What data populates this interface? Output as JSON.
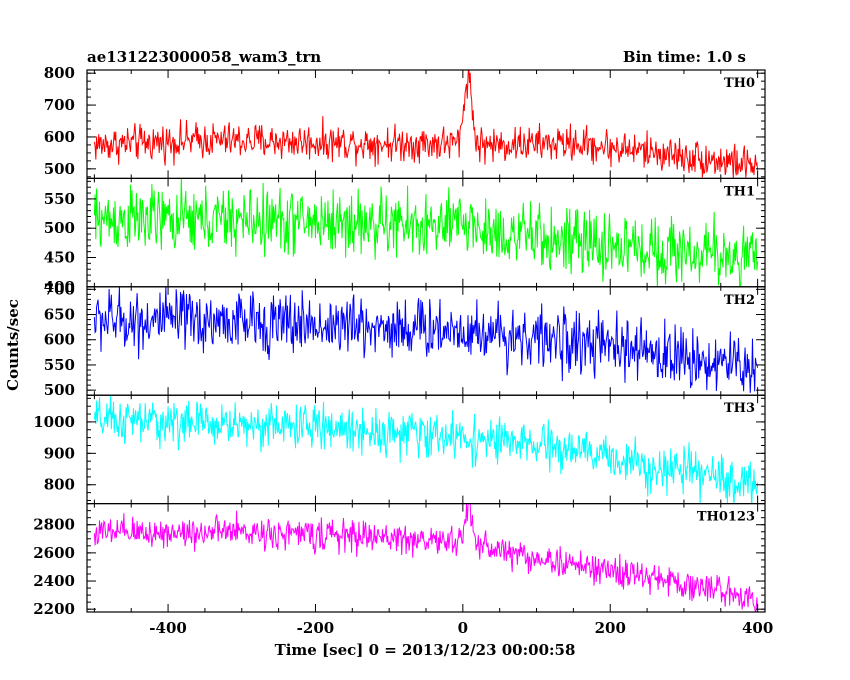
{
  "header": {
    "title": "ae131223000058_wam3_trn",
    "bin_time": "Bin time: 1.0 s"
  },
  "chart_data": {
    "type": "line",
    "xlabel": "Time [sec] 0 = 2013/12/23 00:00:58",
    "ylabel": "Counts/sec",
    "xlim": [
      -510,
      410
    ],
    "x_ticks": [
      -400,
      -200,
      0,
      200,
      400
    ],
    "x_step": 1,
    "series": [
      {
        "name": "TH0",
        "color": "#ff0000",
        "ylim": [
          470,
          810
        ],
        "y_ticks": [
          500,
          600,
          700,
          800
        ],
        "trend": [
          [
            -500,
            575
          ],
          [
            -350,
            590
          ],
          [
            -100,
            580
          ],
          [
            0,
            580
          ],
          [
            20,
            575
          ],
          [
            150,
            580
          ],
          [
            250,
            555
          ],
          [
            400,
            510
          ]
        ],
        "noise": 28,
        "peaks": [
          {
            "t": 7,
            "amp": 220,
            "w": 5
          }
        ]
      },
      {
        "name": "TH1",
        "color": "#00ff00",
        "ylim": [
          400,
          585
        ],
        "y_ticks": [
          400,
          450,
          500,
          550
        ],
        "trend": [
          [
            -500,
            515
          ],
          [
            -200,
            512
          ],
          [
            0,
            500
          ],
          [
            150,
            475
          ],
          [
            400,
            450
          ]
        ],
        "noise": 28,
        "peaks": [
          {
            "t": 5,
            "amp": 15,
            "w": 8
          }
        ]
      },
      {
        "name": "TH2",
        "color": "#0000ff",
        "ylim": [
          490,
          705
        ],
        "y_ticks": [
          500,
          550,
          600,
          650,
          700
        ],
        "trend": [
          [
            -500,
            640
          ],
          [
            -300,
            635
          ],
          [
            -100,
            625
          ],
          [
            0,
            620
          ],
          [
            150,
            595
          ],
          [
            400,
            545
          ]
        ],
        "noise": 30,
        "peaks": []
      },
      {
        "name": "TH3",
        "color": "#00ffff",
        "ylim": [
          740,
          1085
        ],
        "y_ticks": [
          800,
          900,
          1000
        ],
        "trend": [
          [
            -500,
            1005
          ],
          [
            -200,
            985
          ],
          [
            0,
            950
          ],
          [
            150,
            910
          ],
          [
            300,
            840
          ],
          [
            400,
            800
          ]
        ],
        "noise": 35,
        "peaks": []
      },
      {
        "name": "TH0123",
        "color": "#ff00ff",
        "ylim": [
          2180,
          2950
        ],
        "y_ticks": [
          2200,
          2400,
          2600,
          2800
        ],
        "trend": [
          [
            -500,
            2740
          ],
          [
            -300,
            2750
          ],
          [
            -100,
            2710
          ],
          [
            0,
            2670
          ],
          [
            20,
            2660
          ],
          [
            100,
            2560
          ],
          [
            200,
            2470
          ],
          [
            300,
            2380
          ],
          [
            400,
            2280
          ]
        ],
        "noise": 55,
        "peaks": [
          {
            "t": 7,
            "amp": 250,
            "w": 5
          }
        ]
      }
    ]
  }
}
